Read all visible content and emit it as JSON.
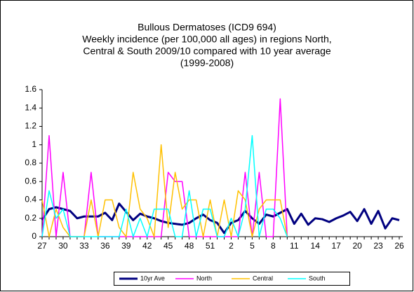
{
  "chart_data": {
    "type": "line",
    "title": [
      "Bullous Dermatoses (ICD9 694)",
      "Weekly incidence (per 100,000 all ages) in regions North,",
      "Central & South 2009/10 compared with 10 year average",
      "(1999-2008)"
    ],
    "categories": [
      "27",
      null,
      null,
      "30",
      null,
      null,
      "33",
      null,
      null,
      "36",
      null,
      null,
      "39",
      null,
      null,
      "42",
      null,
      null,
      "45",
      null,
      null,
      "48",
      null,
      null,
      "51",
      null,
      null,
      "2",
      null,
      null,
      "5",
      null,
      null,
      "8",
      null,
      null,
      "11",
      null,
      null,
      "14",
      null,
      null,
      "17",
      null,
      null,
      "20",
      null,
      null,
      "23",
      null,
      null,
      "26"
    ],
    "ylim": [
      0,
      1.6
    ],
    "yticks": [
      0,
      0.2,
      0.4,
      0.6,
      0.8,
      1,
      1.2,
      1.4,
      1.6
    ],
    "grid": false,
    "legend": "bottom",
    "series": [
      {
        "name": "10yr Ave",
        "color": "#000080",
        "width": 3,
        "values": [
          0.18,
          0.3,
          0.32,
          0.3,
          0.28,
          0.2,
          0.22,
          0.22,
          0.22,
          0.26,
          0.18,
          0.36,
          0.27,
          0.18,
          0.25,
          0.22,
          0.2,
          0.17,
          0.15,
          0.14,
          0.13,
          0.15,
          0.2,
          0.24,
          0.18,
          0.15,
          0.04,
          0.15,
          0.18,
          0.28,
          0.2,
          0.14,
          0.24,
          0.22,
          0.26,
          0.3,
          0.14,
          0.25,
          0.13,
          0.2,
          0.19,
          0.16,
          0.2,
          0.23,
          0.27,
          0.17,
          0.3,
          0.14,
          0.28,
          0.09,
          0.2,
          0.18
        ]
      },
      {
        "name": "North",
        "color": "#ff00ff",
        "width": 1.5,
        "values": [
          0,
          1.1,
          0,
          0.7,
          0,
          0,
          0,
          0.7,
          0,
          0,
          0,
          0,
          0,
          0,
          0,
          0,
          0,
          0,
          0.7,
          0.6,
          0.6,
          0,
          0,
          0,
          0,
          0,
          0,
          0,
          0,
          0.7,
          0,
          0.7,
          0,
          0,
          1.5,
          0,
          null,
          null,
          null,
          null,
          null,
          null,
          null,
          null,
          null,
          null,
          null,
          null,
          null,
          null,
          null,
          null
        ]
      },
      {
        "name": "Central",
        "color": "#ffc000",
        "width": 1.5,
        "values": [
          0.4,
          0,
          0.3,
          0.1,
          0,
          0,
          0,
          0.4,
          0,
          0.4,
          0.4,
          0.1,
          0,
          0.7,
          0.3,
          0.2,
          0,
          1,
          0.1,
          0.7,
          0.3,
          0.4,
          0.4,
          0,
          0.4,
          0,
          0.4,
          0,
          0.5,
          0.4,
          0,
          0.3,
          0.4,
          0.4,
          0.4,
          0,
          null,
          null,
          null,
          null,
          null,
          null,
          null,
          null,
          null,
          null,
          null,
          null,
          null,
          null,
          null,
          null
        ]
      },
      {
        "name": "South",
        "color": "#00ffff",
        "width": 1.5,
        "values": [
          0,
          0.5,
          0.2,
          0.3,
          0,
          0,
          0,
          0,
          0,
          0,
          0,
          0,
          0.3,
          0,
          0.2,
          0,
          0.3,
          0.3,
          0.3,
          0,
          0,
          0.5,
          0,
          0.3,
          0.3,
          0,
          0,
          0.2,
          0,
          0.3,
          1.1,
          0,
          0.3,
          0.3,
          0.2,
          0,
          null,
          null,
          null,
          null,
          null,
          null,
          null,
          null,
          null,
          null,
          null,
          null,
          null,
          null,
          null,
          null
        ]
      }
    ]
  }
}
